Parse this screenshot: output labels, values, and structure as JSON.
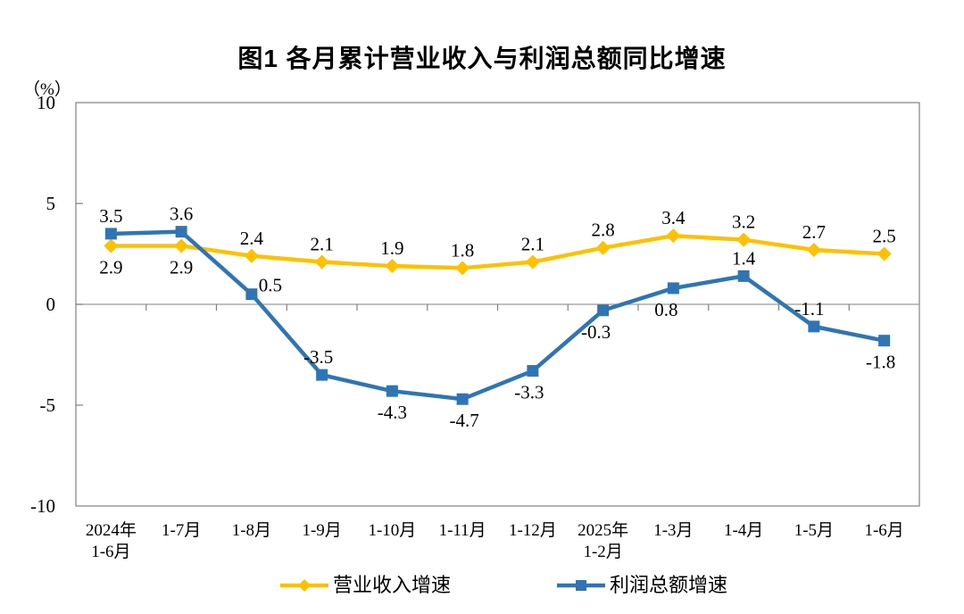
{
  "chart_data": {
    "type": "line",
    "title": "图1 各月累计营业收入与利润总额同比增速",
    "ylabel": "（%）",
    "xlabel": "",
    "ylim": [
      -10,
      10
    ],
    "y_ticks": [
      10,
      5,
      0,
      -5,
      -10
    ],
    "grid": false,
    "legend_position": "bottom",
    "axis_color": "#808080",
    "zero_line_color": "#9a9a9a",
    "categories": [
      [
        "2024年",
        "1-6月"
      ],
      [
        "1-7月"
      ],
      [
        "1-8月"
      ],
      [
        "1-9月"
      ],
      [
        "1-10月"
      ],
      [
        "1-11月"
      ],
      [
        "1-12月"
      ],
      [
        "2025年",
        "1-2月"
      ],
      [
        "1-3月"
      ],
      [
        "1-4月"
      ],
      [
        "1-5月"
      ],
      [
        "1-6月"
      ]
    ],
    "series": [
      {
        "name": "营业收入增速",
        "color": "#FFC000",
        "marker": "diamond",
        "values": [
          2.9,
          2.9,
          2.4,
          2.1,
          1.9,
          1.8,
          2.1,
          2.8,
          3.4,
          3.2,
          2.7,
          2.5
        ],
        "label_pos": [
          "below",
          "below",
          "above",
          "above",
          "above",
          "above",
          "above",
          "above",
          "above",
          "above",
          "above",
          "above"
        ],
        "label_dx": [
          0,
          0,
          0,
          0,
          0,
          0,
          0,
          0,
          0,
          0,
          0,
          0
        ],
        "label_dy": [
          0,
          0,
          0,
          0,
          0,
          0,
          0,
          0,
          0,
          0,
          0,
          0
        ]
      },
      {
        "name": "利润总额增速",
        "color": "#2E75B6",
        "marker": "square",
        "values": [
          3.5,
          3.6,
          0.5,
          -3.5,
          -4.3,
          -4.7,
          -3.3,
          -0.3,
          0.8,
          1.4,
          -1.1,
          -1.8
        ],
        "label_pos": [
          "above",
          "above",
          "above",
          "above",
          "below",
          "below",
          "below",
          "below",
          "below",
          "above",
          "above",
          "below"
        ],
        "label_dx": [
          0,
          0,
          21,
          -4,
          0,
          2,
          -4,
          -8,
          -8,
          0,
          -5,
          -4
        ],
        "label_dy": [
          0,
          0,
          10,
          0,
          0,
          0,
          0,
          0,
          0,
          0,
          0,
          0
        ]
      }
    ]
  }
}
